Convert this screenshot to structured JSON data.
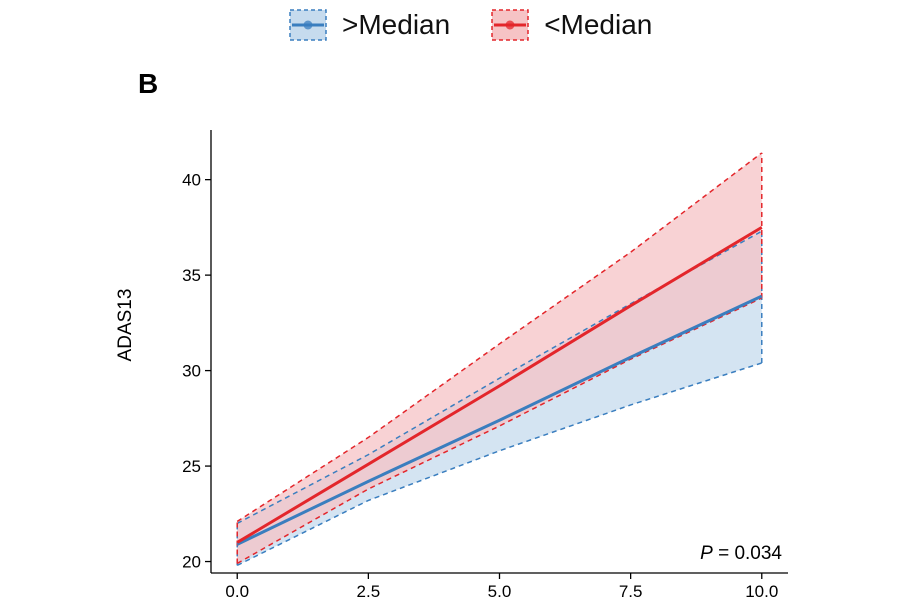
{
  "panel_label": "B",
  "legend": [
    {
      "label": ">Median",
      "color": "#3a7ebf",
      "fill": "#c6dbee"
    },
    {
      "label": "<Median",
      "color": "#e3262b",
      "fill": "#f6c3c5"
    }
  ],
  "annotation": {
    "p_symbol": "P",
    "p_value": " = 0.034"
  },
  "chart_data": {
    "type": "line",
    "title": "",
    "xlabel": "",
    "ylabel": "ADAS13",
    "xlim": [
      -0.5,
      10.5
    ],
    "ylim": [
      19.4,
      42.6
    ],
    "xticks": [
      0.0,
      2.5,
      5.0,
      7.5,
      10.0
    ],
    "xtick_labels": [
      "0.0",
      "2.5",
      "5.0",
      "7.5",
      "10.0"
    ],
    "yticks": [
      20,
      25,
      30,
      35,
      40
    ],
    "ytick_labels": [
      "20",
      "25",
      "30",
      "35",
      "40"
    ],
    "grid": false,
    "legend_position": "top",
    "series": [
      {
        "name": ">Median",
        "color": "#3a7ebf",
        "fill": "#c6dbee",
        "x": [
          0,
          2.5,
          5,
          7.5,
          10
        ],
        "y": [
          20.9,
          24.2,
          27.4,
          30.7,
          33.9
        ],
        "ci_lower": [
          19.8,
          23.2,
          25.8,
          28.2,
          30.4
        ],
        "ci_upper": [
          22.0,
          25.6,
          29.6,
          33.5,
          37.3
        ]
      },
      {
        "name": "<Median",
        "color": "#e3262b",
        "fill": "#f6c3c5",
        "x": [
          0,
          2.5,
          5,
          7.5,
          10
        ],
        "y": [
          21.0,
          25.1,
          29.2,
          33.4,
          37.5
        ],
        "ci_lower": [
          19.9,
          23.8,
          27.1,
          30.6,
          33.8
        ],
        "ci_upper": [
          22.1,
          26.5,
          31.4,
          36.2,
          41.4
        ]
      }
    ]
  }
}
